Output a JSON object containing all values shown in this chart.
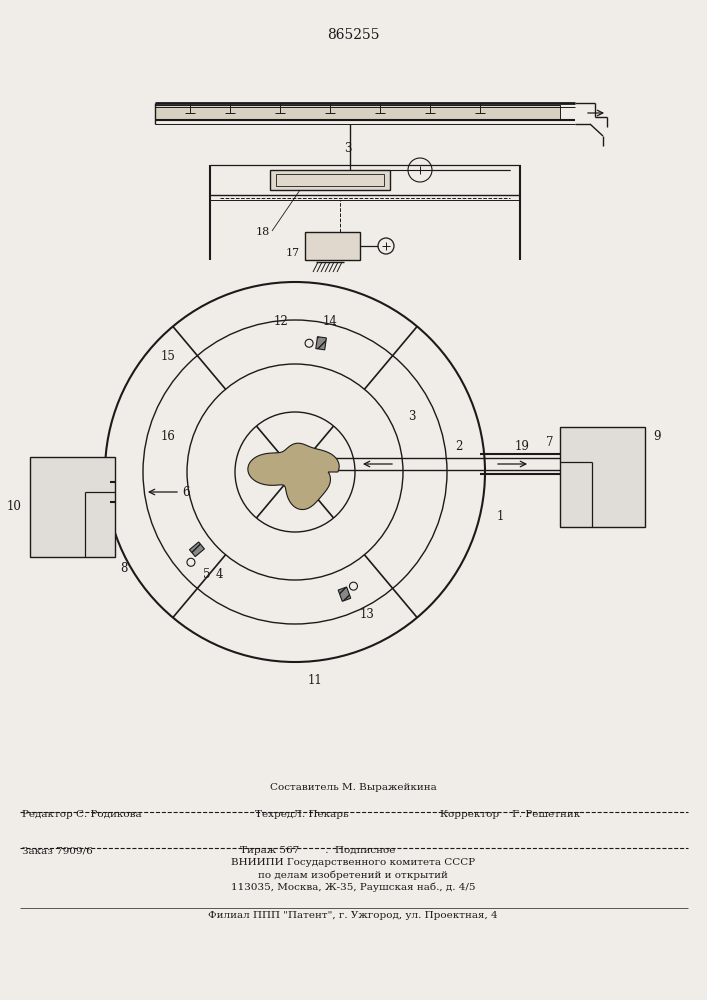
{
  "patent_number": "865255",
  "bg": "#f0ede8",
  "lc": "#1a1a1a",
  "composer_line": "Составитель М. Выражейкина",
  "editor_line": "Редактор С. Родикова",
  "techred_line": "ТехредЛ. Пекарь",
  "korrektor_line": "Корректор    Г. Решетник",
  "zakaz_line": "Заказ 7909/6",
  "tirazh_line": "Тираж 567        .  Подписное",
  "vniiipi_line1": "ВНИИПИ Государственного комитета СССР",
  "vniiipi_line2": "по делам изобретений и открытий",
  "vniiipi_line3": "113035, Москва, Ж-35, Раушская наб., д. 4/5",
  "filial_line": "Филиал ППП \"Патент\", г. Ужгород, ул. Проектная, 4"
}
